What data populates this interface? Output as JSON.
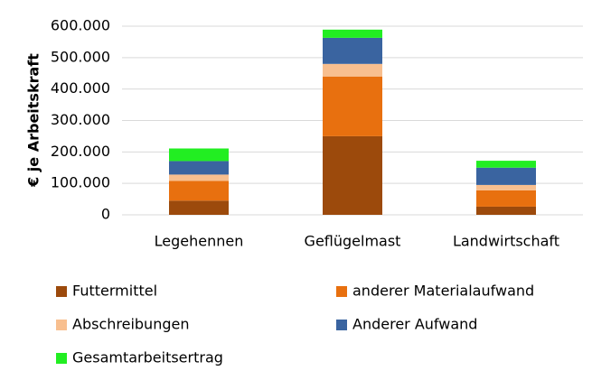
{
  "chart_data": {
    "type": "stacked_bar",
    "y_axis_label": "€ je Arbeitskraft",
    "categories": [
      "Legehennen",
      "Geflügelmast",
      "Landwirtschaft"
    ],
    "series": [
      {
        "name": "Futtermittel",
        "color": "#9c4a0c",
        "values": [
          45000,
          250000,
          26000
        ]
      },
      {
        "name": "anderer Materialaufwand",
        "color": "#e8700f",
        "values": [
          63000,
          190000,
          52000
        ]
      },
      {
        "name": "Abschreibungen",
        "color": "#f8bf8f",
        "values": [
          20000,
          40000,
          17000
        ]
      },
      {
        "name": "Anderer Aufwand",
        "color": "#3a64a0",
        "values": [
          43000,
          83000,
          55000
        ]
      },
      {
        "name": "Gesamtarbeitsertrag",
        "color": "#22ee22",
        "values": [
          40000,
          26000,
          22000
        ]
      }
    ],
    "ylim": [
      0,
      600000
    ],
    "yticks": [
      0,
      {
        "value": 100000,
        "label": "100.000"
      },
      {
        "value": 200000,
        "label": "200.000"
      },
      {
        "value": 300000,
        "label": "300.000"
      },
      {
        "value": 400000,
        "label": "400.000"
      },
      {
        "value": 500000,
        "label": "500.000"
      },
      {
        "value": 600000,
        "label": "600.000"
      }
    ],
    "grid": true,
    "legend": "bottom"
  }
}
